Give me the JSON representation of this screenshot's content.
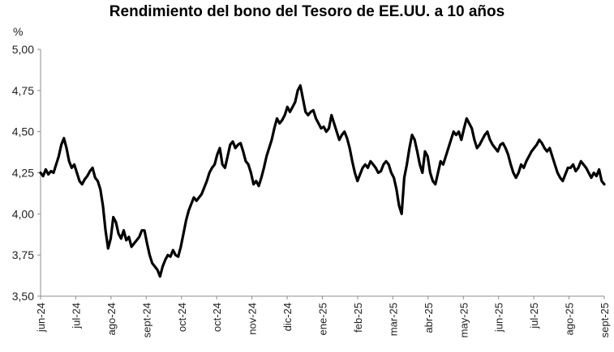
{
  "chart_data": {
    "type": "line",
    "title": "Rendimiento del bono del Tesoro de EE.UU. a 10 años",
    "ylabel": "%",
    "xlabel": "",
    "ylim": [
      3.5,
      5.0
    ],
    "yticks": [
      "3,50",
      "3,75",
      "4,00",
      "4,25",
      "4,50",
      "4,75",
      "5,00"
    ],
    "xtick_labels": [
      "jun-24",
      "jul-24",
      "ago-24",
      "sept-24",
      "oct-24",
      "oct-24",
      "nov-24",
      "dic-24",
      "ene-25",
      "feb-25",
      "mar-25",
      "abr-25",
      "may-25",
      "jun-25",
      "jul-25",
      "ago-25",
      "sept-25"
    ],
    "grid": false,
    "legend": "none",
    "line_color": "#000000",
    "series": [
      {
        "values": [
          4.25,
          4.23,
          4.27,
          4.24,
          4.26,
          4.25,
          4.3,
          4.35,
          4.42,
          4.46,
          4.4,
          4.32,
          4.28,
          4.3,
          4.25,
          4.2,
          4.18,
          4.21,
          4.23,
          4.26,
          4.28,
          4.22,
          4.2,
          4.15,
          4.05,
          3.9,
          3.79,
          3.85,
          3.98,
          3.95,
          3.88,
          3.85,
          3.9,
          3.84,
          3.86,
          3.8,
          3.82,
          3.84,
          3.86,
          3.9,
          3.9,
          3.82,
          3.75,
          3.7,
          3.68,
          3.66,
          3.62,
          3.68,
          3.72,
          3.75,
          3.74,
          3.78,
          3.75,
          3.74,
          3.8,
          3.88,
          3.96,
          4.02,
          4.06,
          4.1,
          4.08,
          4.1,
          4.12,
          4.16,
          4.2,
          4.25,
          4.28,
          4.3,
          4.36,
          4.4,
          4.3,
          4.28,
          4.35,
          4.42,
          4.44,
          4.4,
          4.42,
          4.43,
          4.38,
          4.32,
          4.3,
          4.25,
          4.18,
          4.2,
          4.17,
          4.22,
          4.28,
          4.35,
          4.4,
          4.45,
          4.52,
          4.58,
          4.55,
          4.57,
          4.6,
          4.65,
          4.62,
          4.65,
          4.68,
          4.75,
          4.78,
          4.7,
          4.62,
          4.6,
          4.62,
          4.63,
          4.58,
          4.55,
          4.52,
          4.53,
          4.5,
          4.52,
          4.6,
          4.55,
          4.5,
          4.45,
          4.48,
          4.5,
          4.46,
          4.4,
          4.32,
          4.25,
          4.2,
          4.24,
          4.28,
          4.3,
          4.28,
          4.32,
          4.3,
          4.28,
          4.25,
          4.26,
          4.3,
          4.32,
          4.3,
          4.25,
          4.22,
          4.15,
          4.05,
          4.0,
          4.22,
          4.3,
          4.4,
          4.48,
          4.45,
          4.38,
          4.3,
          4.25,
          4.38,
          4.35,
          4.25,
          4.2,
          4.18,
          4.25,
          4.32,
          4.3,
          4.35,
          4.4,
          4.45,
          4.5,
          4.48,
          4.5,
          4.45,
          4.52,
          4.58,
          4.55,
          4.52,
          4.45,
          4.4,
          4.42,
          4.45,
          4.48,
          4.5,
          4.45,
          4.42,
          4.4,
          4.38,
          4.42,
          4.43,
          4.4,
          4.36,
          4.3,
          4.25,
          4.22,
          4.25,
          4.3,
          4.28,
          4.32,
          4.35,
          4.38,
          4.4,
          4.42,
          4.45,
          4.43,
          4.4,
          4.38,
          4.4,
          4.35,
          4.3,
          4.25,
          4.22,
          4.2,
          4.24,
          4.28,
          4.28,
          4.3,
          4.26,
          4.28,
          4.32,
          4.3,
          4.28,
          4.25,
          4.22,
          4.25,
          4.23,
          4.27,
          4.2,
          4.18
        ]
      }
    ]
  }
}
